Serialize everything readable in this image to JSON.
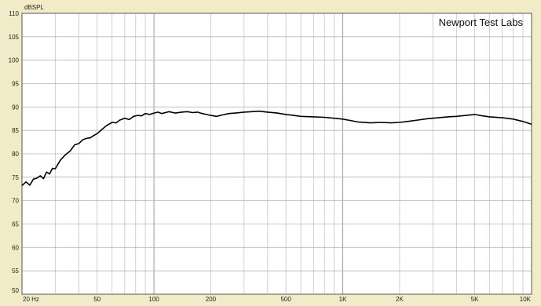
{
  "chart_data": {
    "type": "line",
    "title": "",
    "ylabel": "dBSPL",
    "xlabel": "",
    "x_scale": "log",
    "xlim": [
      20,
      10000
    ],
    "ylim": [
      50,
      110
    ],
    "grid": true,
    "watermark": "Newport Test Labs",
    "y_ticks": [
      50,
      55,
      60,
      65,
      70,
      75,
      80,
      85,
      90,
      95,
      100,
      105,
      110
    ],
    "x_ticks": [
      {
        "value": 20,
        "label": "20 Hz"
      },
      {
        "value": 50,
        "label": "50"
      },
      {
        "value": 100,
        "label": "100"
      },
      {
        "value": 200,
        "label": "200"
      },
      {
        "value": 500,
        "label": "500"
      },
      {
        "value": 1000,
        "label": "1K"
      },
      {
        "value": 2000,
        "label": "2K"
      },
      {
        "value": 5000,
        "label": "5K"
      },
      {
        "value": 10000,
        "label": "10K"
      }
    ],
    "series": [
      {
        "color": "#000000",
        "x": [
          20,
          21,
          22,
          23,
          24,
          25,
          26,
          27,
          28,
          29,
          30,
          32,
          34,
          36,
          38,
          40,
          42,
          44,
          46,
          48,
          50,
          53,
          56,
          60,
          63,
          66,
          70,
          74,
          78,
          82,
          86,
          90,
          95,
          100,
          105,
          110,
          115,
          120,
          130,
          140,
          150,
          160,
          170,
          180,
          190,
          200,
          215,
          230,
          250,
          270,
          300,
          330,
          360,
          400,
          450,
          500,
          550,
          600,
          700,
          800,
          900,
          1000,
          1100,
          1200,
          1400,
          1600,
          1800,
          2000,
          2200,
          2500,
          2800,
          3200,
          3600,
          4000,
          4500,
          5000,
          5500,
          6000,
          7000,
          8000,
          9000,
          10000
        ],
        "y": [
          73.2,
          74.0,
          73.3,
          74.6,
          74.8,
          75.3,
          74.7,
          76.1,
          75.7,
          76.9,
          76.8,
          78.7,
          79.8,
          80.6,
          81.9,
          82.2,
          83.0,
          83.3,
          83.4,
          83.9,
          84.3,
          85.2,
          86.0,
          86.7,
          86.6,
          87.2,
          87.6,
          87.3,
          88.0,
          88.2,
          88.1,
          88.6,
          88.4,
          88.7,
          88.9,
          88.6,
          88.8,
          89.0,
          88.7,
          88.9,
          89.0,
          88.8,
          88.9,
          88.6,
          88.4,
          88.2,
          88.0,
          88.3,
          88.6,
          88.7,
          88.9,
          89.0,
          89.1,
          88.9,
          88.7,
          88.4,
          88.2,
          88.0,
          87.9,
          87.8,
          87.6,
          87.4,
          87.1,
          86.8,
          86.6,
          86.7,
          86.6,
          86.7,
          86.9,
          87.2,
          87.5,
          87.7,
          87.9,
          88.0,
          88.2,
          88.4,
          88.1,
          87.9,
          87.7,
          87.4,
          86.9,
          86.3
        ]
      }
    ]
  }
}
